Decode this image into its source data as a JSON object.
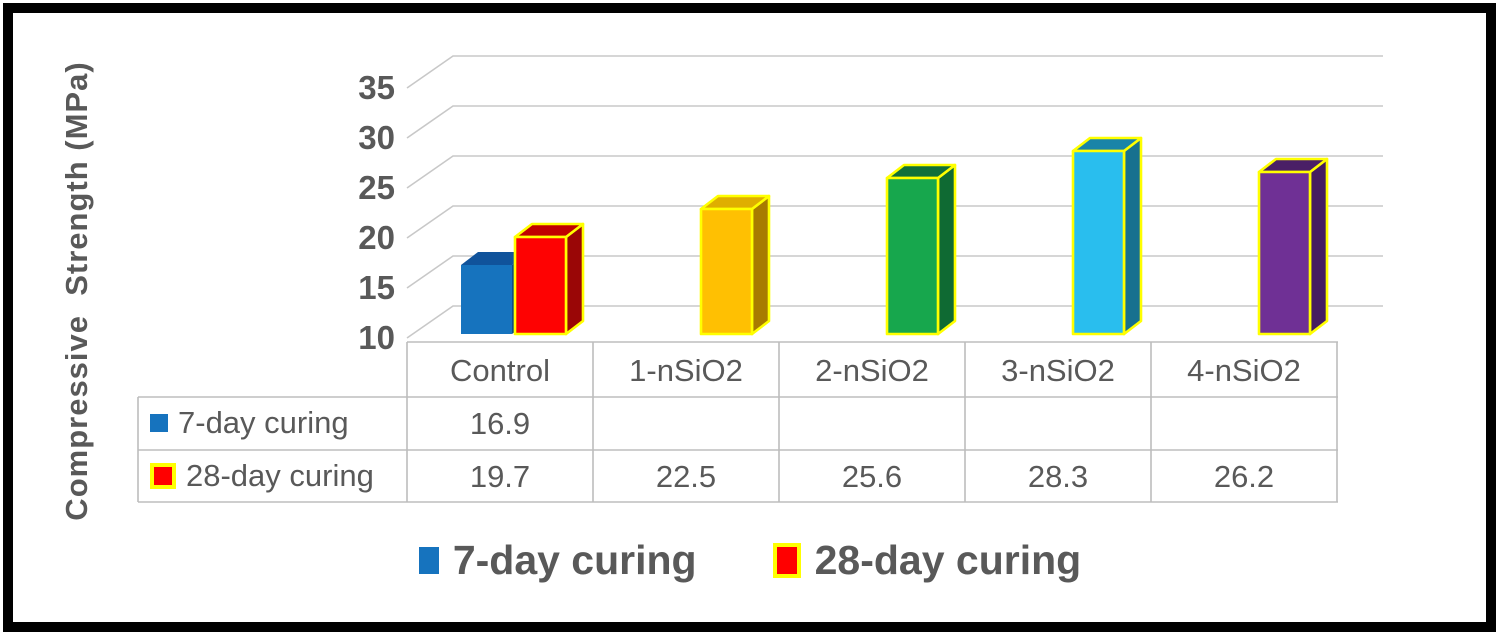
{
  "chart_data": {
    "type": "bar",
    "style": "3d-column",
    "title": "",
    "xlabel": "",
    "ylabel": "Compressive  Strength (MPa)",
    "categories": [
      "Control",
      "1-nSiO2",
      "2-nSiO2",
      "3-nSiO2",
      "4-nSiO2"
    ],
    "series": [
      {
        "name": "7-day curing",
        "key_color": "#1673BE",
        "key_border": null,
        "values": [
          16.9,
          null,
          null,
          null,
          null
        ],
        "bar_colors": [
          {
            "front": "#1673BE",
            "side": "#0C4E85",
            "top": "#10539B",
            "outline": null
          },
          null,
          null,
          null,
          null
        ]
      },
      {
        "name": "28-day curing",
        "key_color": "#FF0000",
        "key_border": "#FFFF00",
        "values": [
          19.7,
          22.5,
          25.6,
          28.3,
          26.2
        ],
        "bar_colors": [
          {
            "front": "#FE0202",
            "side": "#9A0606",
            "top": "#C00000",
            "outline": "#FFFF00"
          },
          {
            "front": "#FFC002",
            "side": "#A87B00",
            "top": "#DFAE00",
            "outline": "#FFFF00"
          },
          {
            "front": "#17A74D",
            "side": "#0F6A33",
            "top": "#11703A",
            "outline": "#FFFF00"
          },
          {
            "front": "#29BEEE",
            "side": "#17718F",
            "top": "#1A84A8",
            "outline": "#FFFF00"
          },
          {
            "front": "#6F3095",
            "side": "#461D60",
            "top": "#4A1F66",
            "outline": "#FFFF00"
          }
        ]
      }
    ],
    "ylim": [
      10,
      35
    ],
    "yticks": [
      10,
      15,
      20,
      25,
      30,
      35
    ],
    "grid": true,
    "legend_position": "bottom",
    "data_table_shown": true
  },
  "colors": {
    "text": "#595959",
    "gridline": "#C8C8C8",
    "table_border": "#BDBDBD",
    "frame_border": "#000000",
    "background": "#FFFFFF"
  }
}
